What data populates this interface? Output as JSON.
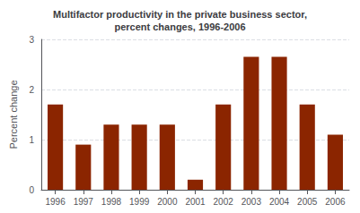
{
  "chart_data": {
    "type": "bar",
    "title": "Multifactor productivity in the private business sector,\npercent changes, 1996-2006",
    "y_label": "Percent change",
    "categories": [
      "1996",
      "1997",
      "1998",
      "1999",
      "2000",
      "2001",
      "2002",
      "2003",
      "2004",
      "2005",
      "2006"
    ],
    "values": [
      1.7,
      0.9,
      1.3,
      1.3,
      1.3,
      0.2,
      1.7,
      2.65,
      2.65,
      1.7,
      1.1
    ],
    "color": "#8B2500",
    "ylim": [
      0,
      3
    ],
    "yticks": [
      0,
      1,
      2,
      3
    ],
    "grid": true
  }
}
